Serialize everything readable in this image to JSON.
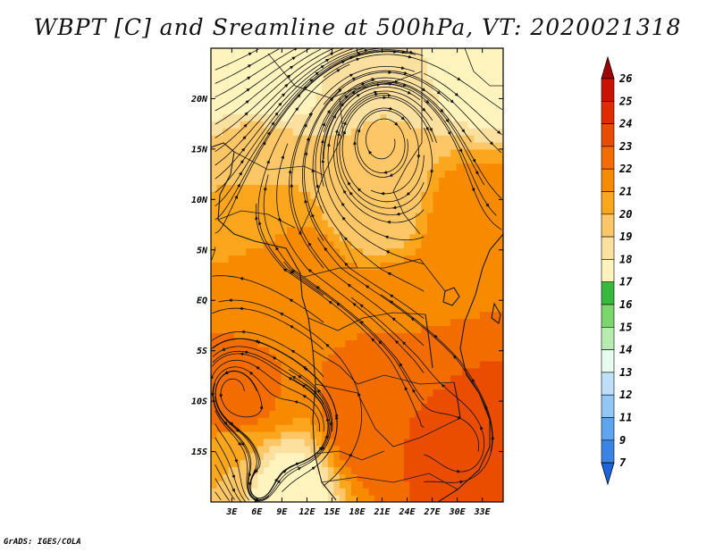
{
  "chart_data": {
    "type": "heatmap",
    "title": "WBPT [C] and Sreamline at 500hPa, VT: 2020021318",
    "variable": "WBPT [C]",
    "overlay": "Streamline",
    "level": "500hPa",
    "valid_time": "2020021318",
    "x_ticks": [
      "3E",
      "6E",
      "9E",
      "12E",
      "15E",
      "18E",
      "21E",
      "24E",
      "27E",
      "30E",
      "33E"
    ],
    "x_tick_values": [
      3,
      6,
      9,
      12,
      15,
      18,
      21,
      24,
      27,
      30,
      33
    ],
    "y_ticks": [
      "20N",
      "15N",
      "10N",
      "5N",
      "EQ",
      "5S",
      "10S",
      "15S"
    ],
    "y_tick_values": [
      20,
      15,
      10,
      5,
      0,
      -5,
      -10,
      -15
    ],
    "xlim": [
      0.5,
      35.5
    ],
    "ylim": [
      -20,
      25
    ],
    "colorbar": {
      "levels": [
        "26",
        "25",
        "24",
        "23",
        "22",
        "21",
        "20",
        "19",
        "18",
        "17",
        "16",
        "15",
        "14",
        "13",
        "12",
        "11",
        "9",
        "7"
      ],
      "colors": [
        "#a00000",
        "#c81400",
        "#e02c00",
        "#ea4c00",
        "#f26c00",
        "#f88a00",
        "#fca61e",
        "#fdc667",
        "#fbe0a0",
        "#fff3be",
        "#38b83c",
        "#7cd66c",
        "#b6ecb0",
        "#e8fbf0",
        "#bfe0fb",
        "#92c6f5",
        "#5fa4ee",
        "#3a84e6",
        "#1d64dd"
      ]
    },
    "wbpt_samples": [
      {
        "lon": 2,
        "lat": 24,
        "value": 17
      },
      {
        "lon": 8,
        "lat": 23,
        "value": 17
      },
      {
        "lon": 33,
        "lat": 24,
        "value": 17
      },
      {
        "lon": 20,
        "lat": 20,
        "value": 19
      },
      {
        "lon": 6,
        "lat": 13,
        "value": 20
      },
      {
        "lon": 20,
        "lat": 10,
        "value": 19
      },
      {
        "lon": 32,
        "lat": 7,
        "value": 22
      },
      {
        "lon": 6,
        "lat": 3,
        "value": 21
      },
      {
        "lon": 12,
        "lat": 1,
        "value": 22
      },
      {
        "lon": 23,
        "lat": -2,
        "value": 22
      },
      {
        "lon": 7,
        "lat": -7,
        "value": 22
      },
      {
        "lon": 3,
        "lat": -10,
        "value": 23
      },
      {
        "lon": 20,
        "lat": -12,
        "value": 23
      },
      {
        "lon": 32,
        "lat": -15,
        "value": 24
      },
      {
        "lon": 3,
        "lat": -16,
        "value": 20
      },
      {
        "lon": 9,
        "lat": -19,
        "value": 17
      }
    ],
    "circulation_centers": [
      {
        "lon": 21,
        "lat": 16,
        "type": "vortex"
      },
      {
        "lon": 31,
        "lat": -15,
        "type": "vortex"
      },
      {
        "lon": 3,
        "lat": -9,
        "type": "vortex"
      },
      {
        "lon": 12,
        "lat": -13,
        "type": "vortex"
      },
      {
        "lon": 6,
        "lat": -19,
        "type": "vortex"
      }
    ]
  },
  "footer": "GrADS: IGES/COLA"
}
